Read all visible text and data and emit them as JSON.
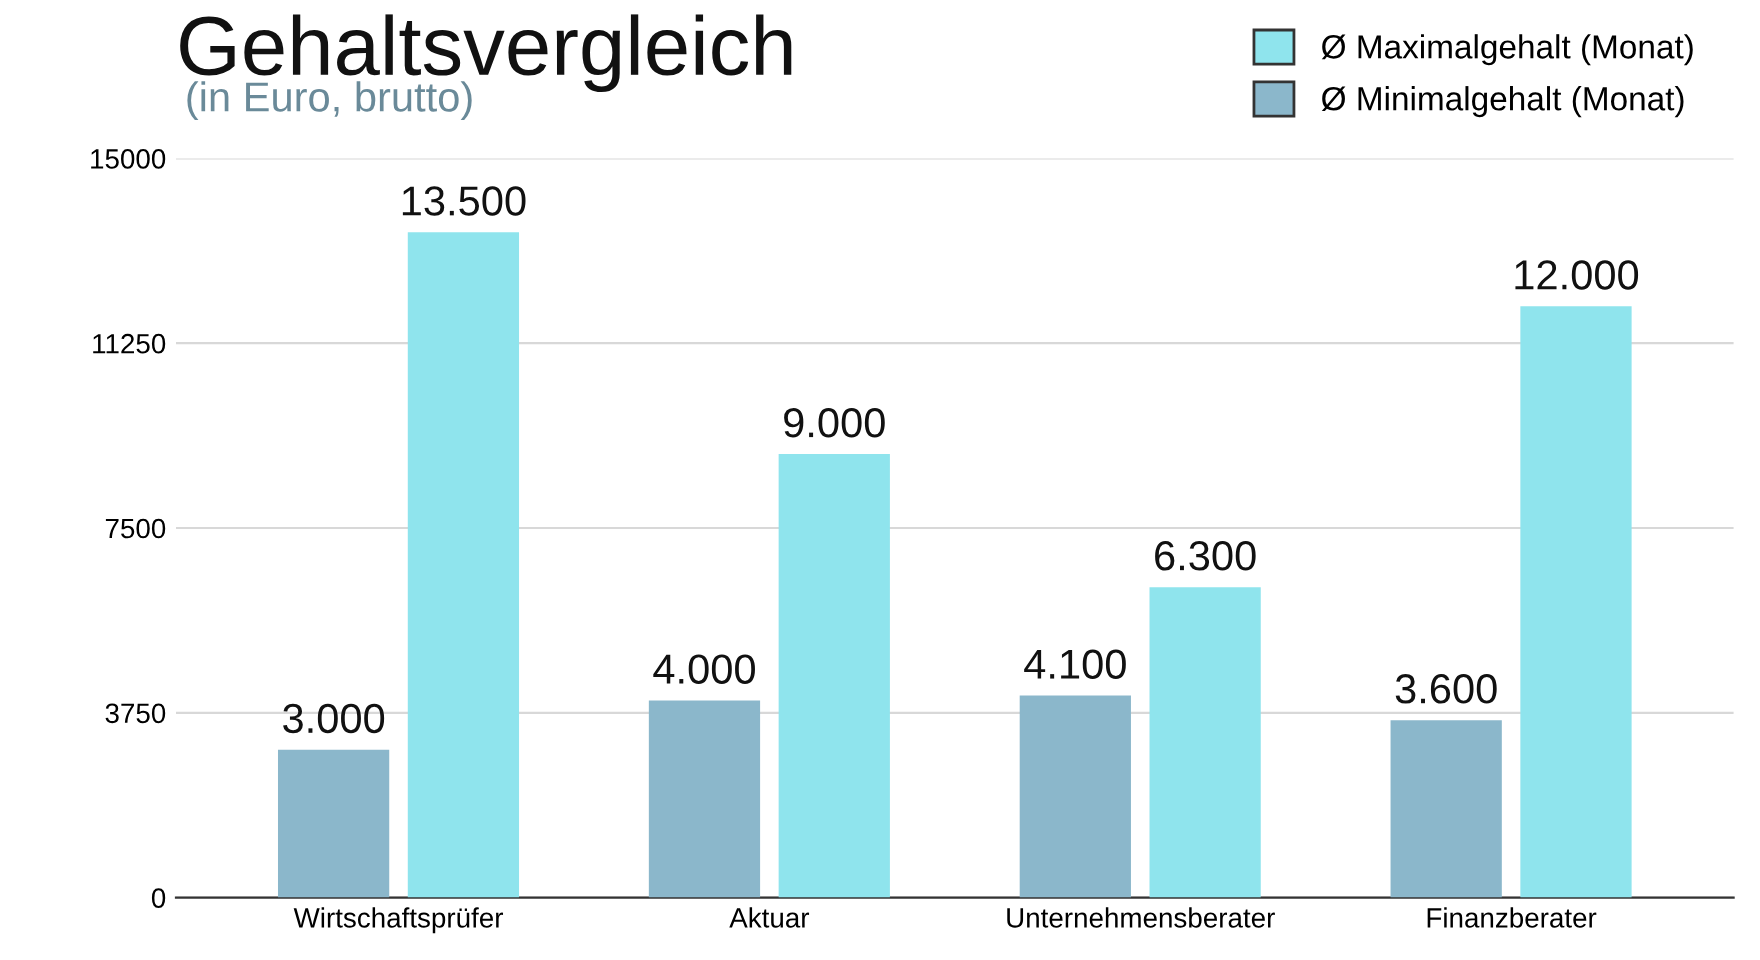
{
  "chart_data": {
    "type": "bar",
    "title": "Gehaltsvergleich",
    "subtitle": "(in Euro, brutto)",
    "categories": [
      "Wirtschaftsprüfer",
      "Aktuar",
      "Unternehmensberater",
      "Finanzberater"
    ],
    "series": [
      {
        "name": "Ø Minimalgehalt (Monat)",
        "color": "#8bb7cb",
        "values": [
          3000,
          4000,
          4100,
          3600
        ],
        "value_labels": [
          "3.000",
          "4.000",
          "4.100",
          "3.600"
        ]
      },
      {
        "name": "Ø Maximalgehalt (Monat)",
        "color": "#8fe4ed",
        "values": [
          13500,
          9000,
          6300,
          12000
        ],
        "value_labels": [
          "13.500",
          "9.000",
          "6.300",
          "12.000"
        ]
      }
    ],
    "ylim": [
      0,
      15000
    ],
    "yticks": [
      0,
      3750,
      7500,
      11250,
      15000
    ],
    "grid": "y",
    "legend": "top right"
  }
}
